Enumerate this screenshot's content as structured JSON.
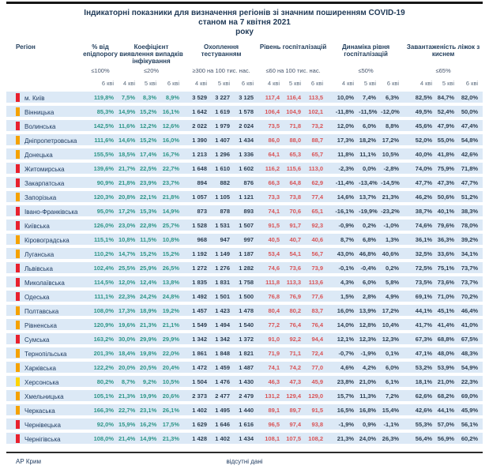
{
  "title": {
    "line1": "Індикаторні показники для визначення регіонів зі значним поширенням COVID-19",
    "line2": "станом на 7 квітня 2021",
    "line3": "року"
  },
  "colors": {
    "row_band": "#dce9f6",
    "value_teal": "#2e9688",
    "value_navy": "#2d3e50",
    "value_red": "#d95457",
    "markers": {
      "red": "#e8212e",
      "orange": "#f5a201",
      "yellow": "#ffd502"
    }
  },
  "table": {
    "header": {
      "region_label": "Регіон",
      "groups": [
        {
          "label": "% від епідпорогу",
          "threshold": "≤100%",
          "dates": [
            "6 кві"
          ]
        },
        {
          "label": "Коефіцієнт виявлення випадків інфікування",
          "threshold": "≤20%",
          "dates": [
            "4 кві",
            "5 кві",
            "6 кві"
          ]
        },
        {
          "label": "Охоплення тестуванням",
          "threshold": "≥300 на 100 тис. нас.",
          "dates": [
            "4 кві",
            "5 кві",
            "6 кві"
          ]
        },
        {
          "label": "Рівень госпіталізацій",
          "threshold": "≤60 на 100 тис. нас.",
          "dates": [
            "4 кві",
            "5 кві",
            "6 кві"
          ]
        },
        {
          "label": "Динаміка рівня госпіталізацій",
          "threshold": "≤50%",
          "dates": [
            "4 кві",
            "5 кві",
            "6 кві"
          ]
        },
        {
          "label": "Завантаженість ліжок з киснем",
          "threshold": "≤65%",
          "dates": [
            "4 кві",
            "5 кві",
            "6 кві"
          ]
        }
      ]
    },
    "rows": [
      {
        "region": "м. Київ",
        "status": "red",
        "epidemic_threshold": [
          "119,8%"
        ],
        "detection": [
          "7,5%",
          "8,3%",
          "8,9%"
        ],
        "testing": [
          "3 529",
          "3 227",
          "3 125"
        ],
        "hospitalization": [
          "117,4",
          "116,4",
          "113,5"
        ],
        "hosp_dynamics": [
          "10,0%",
          "7,4%",
          "6,3%"
        ],
        "oxygen_beds": [
          "82,5%",
          "84,7%",
          "82,0%"
        ]
      },
      {
        "region": "Вінницька",
        "status": "orange",
        "epidemic_threshold": [
          "85,3%"
        ],
        "detection": [
          "14,9%",
          "15,2%",
          "16,1%"
        ],
        "testing": [
          "1 642",
          "1 619",
          "1 578"
        ],
        "hospitalization": [
          "106,4",
          "104,9",
          "102,1"
        ],
        "hosp_dynamics": [
          "-11,8%",
          "-11,5%",
          "-12,0%"
        ],
        "oxygen_beds": [
          "49,5%",
          "52,4%",
          "50,0%"
        ]
      },
      {
        "region": "Волинська",
        "status": "red",
        "epidemic_threshold": [
          "142,5%"
        ],
        "detection": [
          "11,6%",
          "12,2%",
          "12,6%"
        ],
        "testing": [
          "2 022",
          "1 979",
          "2 024"
        ],
        "hospitalization": [
          "73,5",
          "71,8",
          "73,2"
        ],
        "hosp_dynamics": [
          "12,0%",
          "6,0%",
          "8,8%"
        ],
        "oxygen_beds": [
          "45,6%",
          "47,9%",
          "47,4%"
        ]
      },
      {
        "region": "Дніпропетровська",
        "status": "orange",
        "epidemic_threshold": [
          "111,6%"
        ],
        "detection": [
          "14,6%",
          "15,2%",
          "16,0%"
        ],
        "testing": [
          "1 390",
          "1 407",
          "1 434"
        ],
        "hospitalization": [
          "86,0",
          "88,0",
          "88,7"
        ],
        "hosp_dynamics": [
          "17,3%",
          "18,2%",
          "17,2%"
        ],
        "oxygen_beds": [
          "52,0%",
          "55,0%",
          "54,8%"
        ]
      },
      {
        "region": "Донецька",
        "status": "orange",
        "epidemic_threshold": [
          "155,5%"
        ],
        "detection": [
          "18,5%",
          "17,4%",
          "16,7%"
        ],
        "testing": [
          "1 213",
          "1 296",
          "1 336"
        ],
        "hospitalization": [
          "64,1",
          "65,3",
          "65,7"
        ],
        "hosp_dynamics": [
          "11,8%",
          "11,1%",
          "10,5%"
        ],
        "oxygen_beds": [
          "40,0%",
          "41,8%",
          "42,6%"
        ]
      },
      {
        "region": "Житомирська",
        "status": "red",
        "epidemic_threshold": [
          "139,6%"
        ],
        "detection": [
          "21,7%",
          "22,5%",
          "22,7%"
        ],
        "testing": [
          "1 648",
          "1 610",
          "1 602"
        ],
        "hospitalization": [
          "116,2",
          "115,6",
          "113,0"
        ],
        "hosp_dynamics": [
          "-2,3%",
          "0,0%",
          "-2,8%"
        ],
        "oxygen_beds": [
          "74,0%",
          "75,9%",
          "71,8%"
        ]
      },
      {
        "region": "Закарпатська",
        "status": "red",
        "epidemic_threshold": [
          "90,9%"
        ],
        "detection": [
          "21,8%",
          "23,9%",
          "23,7%"
        ],
        "testing": [
          "894",
          "882",
          "876"
        ],
        "hospitalization": [
          "66,3",
          "64,8",
          "62,9"
        ],
        "hosp_dynamics": [
          "-11,4%",
          "-13,4%",
          "-14,5%"
        ],
        "oxygen_beds": [
          "47,7%",
          "47,3%",
          "47,7%"
        ]
      },
      {
        "region": "Запорізька",
        "status": "orange",
        "epidemic_threshold": [
          "120,3%"
        ],
        "detection": [
          "20,8%",
          "22,1%",
          "21,8%"
        ],
        "testing": [
          "1 057",
          "1 105",
          "1 121"
        ],
        "hospitalization": [
          "73,3",
          "73,8",
          "77,4"
        ],
        "hosp_dynamics": [
          "14,6%",
          "13,7%",
          "21,3%"
        ],
        "oxygen_beds": [
          "46,2%",
          "50,6%",
          "51,2%"
        ]
      },
      {
        "region": "Івано-Франківська",
        "status": "red",
        "epidemic_threshold": [
          "95,0%"
        ],
        "detection": [
          "17,2%",
          "15,3%",
          "14,9%"
        ],
        "testing": [
          "873",
          "878",
          "893"
        ],
        "hospitalization": [
          "74,1",
          "70,6",
          "65,1"
        ],
        "hosp_dynamics": [
          "-16,1%",
          "-19,9%",
          "-23,2%"
        ],
        "oxygen_beds": [
          "38,7%",
          "40,1%",
          "38,3%"
        ]
      },
      {
        "region": "Київська",
        "status": "red",
        "epidemic_threshold": [
          "126,0%"
        ],
        "detection": [
          "23,0%",
          "22,8%",
          "25,7%"
        ],
        "testing": [
          "1 528",
          "1 531",
          "1 507"
        ],
        "hospitalization": [
          "91,5",
          "91,7",
          "92,3"
        ],
        "hosp_dynamics": [
          "-0,9%",
          "0,2%",
          "-1,0%"
        ],
        "oxygen_beds": [
          "74,6%",
          "79,6%",
          "78,0%"
        ]
      },
      {
        "region": "Кіровоградська",
        "status": "orange",
        "epidemic_threshold": [
          "115,1%"
        ],
        "detection": [
          "10,8%",
          "11,5%",
          "10,8%"
        ],
        "testing": [
          "968",
          "947",
          "997"
        ],
        "hospitalization": [
          "40,5",
          "40,7",
          "40,6"
        ],
        "hosp_dynamics": [
          "8,7%",
          "6,8%",
          "1,3%"
        ],
        "oxygen_beds": [
          "36,1%",
          "36,3%",
          "39,2%"
        ]
      },
      {
        "region": "Луганська",
        "status": "orange",
        "epidemic_threshold": [
          "110,2%"
        ],
        "detection": [
          "14,7%",
          "15,2%",
          "15,2%"
        ],
        "testing": [
          "1 192",
          "1 149",
          "1 187"
        ],
        "hospitalization": [
          "53,4",
          "54,1",
          "56,7"
        ],
        "hosp_dynamics": [
          "43,0%",
          "46,8%",
          "40,6%"
        ],
        "oxygen_beds": [
          "32,5%",
          "33,6%",
          "34,1%"
        ]
      },
      {
        "region": "Львівська",
        "status": "red",
        "epidemic_threshold": [
          "102,4%"
        ],
        "detection": [
          "25,5%",
          "25,9%",
          "26,5%"
        ],
        "testing": [
          "1 272",
          "1 276",
          "1 282"
        ],
        "hospitalization": [
          "74,6",
          "73,6",
          "73,9"
        ],
        "hosp_dynamics": [
          "-0,1%",
          "-0,4%",
          "0,2%"
        ],
        "oxygen_beds": [
          "72,5%",
          "75,1%",
          "73,7%"
        ]
      },
      {
        "region": "Миколаївська",
        "status": "red",
        "epidemic_threshold": [
          "114,5%"
        ],
        "detection": [
          "12,0%",
          "12,4%",
          "13,8%"
        ],
        "testing": [
          "1 835",
          "1 831",
          "1 758"
        ],
        "hospitalization": [
          "111,8",
          "113,3",
          "113,6"
        ],
        "hosp_dynamics": [
          "4,3%",
          "6,0%",
          "5,8%"
        ],
        "oxygen_beds": [
          "73,5%",
          "73,6%",
          "73,7%"
        ]
      },
      {
        "region": "Одеська",
        "status": "red",
        "epidemic_threshold": [
          "111,1%"
        ],
        "detection": [
          "22,3%",
          "24,2%",
          "24,8%"
        ],
        "testing": [
          "1 492",
          "1 501",
          "1 500"
        ],
        "hospitalization": [
          "76,8",
          "76,9",
          "77,6"
        ],
        "hosp_dynamics": [
          "1,5%",
          "2,8%",
          "4,9%"
        ],
        "oxygen_beds": [
          "69,1%",
          "71,0%",
          "70,2%"
        ]
      },
      {
        "region": "Полтавська",
        "status": "orange",
        "epidemic_threshold": [
          "108,0%"
        ],
        "detection": [
          "17,3%",
          "18,9%",
          "19,2%"
        ],
        "testing": [
          "1 457",
          "1 423",
          "1 478"
        ],
        "hospitalization": [
          "80,4",
          "80,2",
          "83,7"
        ],
        "hosp_dynamics": [
          "16,0%",
          "13,9%",
          "17,2%"
        ],
        "oxygen_beds": [
          "44,1%",
          "45,1%",
          "46,4%"
        ]
      },
      {
        "region": "Рівненська",
        "status": "orange",
        "epidemic_threshold": [
          "120,9%"
        ],
        "detection": [
          "19,6%",
          "21,3%",
          "21,1%"
        ],
        "testing": [
          "1 549",
          "1 494",
          "1 540"
        ],
        "hospitalization": [
          "77,2",
          "76,4",
          "76,4"
        ],
        "hosp_dynamics": [
          "14,0%",
          "12,8%",
          "10,4%"
        ],
        "oxygen_beds": [
          "41,7%",
          "41,4%",
          "41,0%"
        ]
      },
      {
        "region": "Сумська",
        "status": "red",
        "epidemic_threshold": [
          "163,2%"
        ],
        "detection": [
          "30,0%",
          "29,9%",
          "29,9%"
        ],
        "testing": [
          "1 342",
          "1 342",
          "1 372"
        ],
        "hospitalization": [
          "91,0",
          "92,2",
          "94,4"
        ],
        "hosp_dynamics": [
          "12,1%",
          "12,3%",
          "12,3%"
        ],
        "oxygen_beds": [
          "67,3%",
          "68,8%",
          "67,5%"
        ]
      },
      {
        "region": "Тернопільська",
        "status": "orange",
        "epidemic_threshold": [
          "201,3%"
        ],
        "detection": [
          "18,4%",
          "19,8%",
          "22,0%"
        ],
        "testing": [
          "1 861",
          "1 848",
          "1 821"
        ],
        "hospitalization": [
          "71,9",
          "71,1",
          "72,4"
        ],
        "hosp_dynamics": [
          "-0,7%",
          "-1,9%",
          "0,1%"
        ],
        "oxygen_beds": [
          "47,1%",
          "48,0%",
          "48,3%"
        ]
      },
      {
        "region": "Харківська",
        "status": "orange",
        "epidemic_threshold": [
          "122,2%"
        ],
        "detection": [
          "20,0%",
          "20,5%",
          "20,4%"
        ],
        "testing": [
          "1 472",
          "1 459",
          "1 487"
        ],
        "hospitalization": [
          "74,1",
          "74,2",
          "77,0"
        ],
        "hosp_dynamics": [
          "4,6%",
          "4,2%",
          "6,0%"
        ],
        "oxygen_beds": [
          "53,2%",
          "53,9%",
          "54,9%"
        ]
      },
      {
        "region": "Херсонська",
        "status": "yellow",
        "epidemic_threshold": [
          "80,2%"
        ],
        "detection": [
          "8,7%",
          "9,2%",
          "10,5%"
        ],
        "testing": [
          "1 504",
          "1 476",
          "1 430"
        ],
        "hospitalization": [
          "46,3",
          "47,3",
          "45,9"
        ],
        "hosp_dynamics": [
          "23,8%",
          "21,0%",
          "6,1%"
        ],
        "oxygen_beds": [
          "18,1%",
          "21,0%",
          "22,3%"
        ]
      },
      {
        "region": "Хмельницька",
        "status": "orange",
        "epidemic_threshold": [
          "105,1%"
        ],
        "detection": [
          "21,3%",
          "19,9%",
          "20,6%"
        ],
        "testing": [
          "2 373",
          "2 477",
          "2 479"
        ],
        "hospitalization": [
          "131,2",
          "129,4",
          "129,0"
        ],
        "hosp_dynamics": [
          "15,7%",
          "11,3%",
          "7,2%"
        ],
        "oxygen_beds": [
          "62,6%",
          "68,2%",
          "69,0%"
        ]
      },
      {
        "region": "Черкаська",
        "status": "orange",
        "epidemic_threshold": [
          "166,3%"
        ],
        "detection": [
          "22,7%",
          "23,1%",
          "26,1%"
        ],
        "testing": [
          "1 402",
          "1 495",
          "1 440"
        ],
        "hospitalization": [
          "89,1",
          "89,7",
          "91,5"
        ],
        "hosp_dynamics": [
          "16,5%",
          "16,8%",
          "15,4%"
        ],
        "oxygen_beds": [
          "42,6%",
          "44,1%",
          "45,9%"
        ]
      },
      {
        "region": "Чернівецька",
        "status": "red",
        "epidemic_threshold": [
          "92,0%"
        ],
        "detection": [
          "15,9%",
          "16,2%",
          "17,5%"
        ],
        "testing": [
          "1 629",
          "1 646",
          "1 616"
        ],
        "hospitalization": [
          "96,5",
          "97,4",
          "93,8"
        ],
        "hosp_dynamics": [
          "-1,9%",
          "0,9%",
          "-1,1%"
        ],
        "oxygen_beds": [
          "55,3%",
          "57,0%",
          "56,1%"
        ]
      },
      {
        "region": "Чернігівська",
        "status": "red",
        "epidemic_threshold": [
          "108,0%"
        ],
        "detection": [
          "21,4%",
          "14,9%",
          "21,3%"
        ],
        "testing": [
          "1 428",
          "1 402",
          "1 434"
        ],
        "hospitalization": [
          "108,1",
          "107,5",
          "108,2"
        ],
        "hosp_dynamics": [
          "21,3%",
          "24,0%",
          "26,3%"
        ],
        "oxygen_beds": [
          "56,4%",
          "56,9%",
          "60,2%"
        ]
      }
    ],
    "footer": {
      "region": "АР Крим",
      "note": "відсутні дані"
    }
  }
}
